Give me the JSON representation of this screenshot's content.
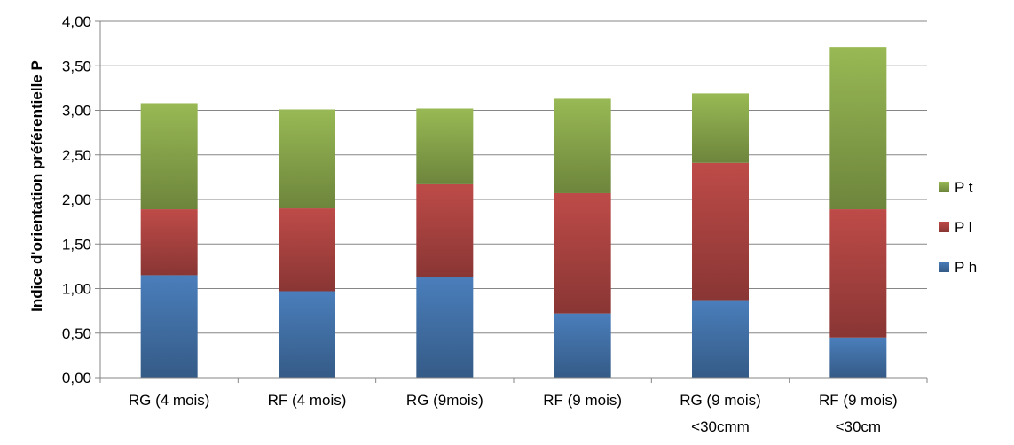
{
  "chart_data": {
    "type": "bar",
    "stacked": true,
    "ylabel": "Indice d'orientation préférentielle P",
    "xlabel": "",
    "ylim": [
      0,
      4
    ],
    "yticks": [
      "0,00",
      "0,50",
      "1,00",
      "1,50",
      "2,00",
      "2,50",
      "3,00",
      "3,50",
      "4,00"
    ],
    "grid": true,
    "legend_position": "right",
    "categories": [
      [
        "RG (4 mois)"
      ],
      [
        "RF (4 mois)"
      ],
      [
        "RG (9mois)"
      ],
      [
        "RF (9 mois)"
      ],
      [
        "RG (9 mois)",
        "<30cmm"
      ],
      [
        "RF (9 mois)",
        "<30cm"
      ]
    ],
    "series": [
      {
        "name": "P h",
        "color": "#4a7ebb",
        "values": [
          1.15,
          0.97,
          1.13,
          0.72,
          0.87,
          0.45
        ]
      },
      {
        "name": "P l",
        "color": "#be4b48",
        "values": [
          0.74,
          0.93,
          1.04,
          1.35,
          1.54,
          1.44
        ]
      },
      {
        "name": "P t",
        "color": "#98b954",
        "values": [
          1.19,
          1.11,
          0.85,
          1.06,
          0.78,
          1.82
        ]
      }
    ]
  }
}
